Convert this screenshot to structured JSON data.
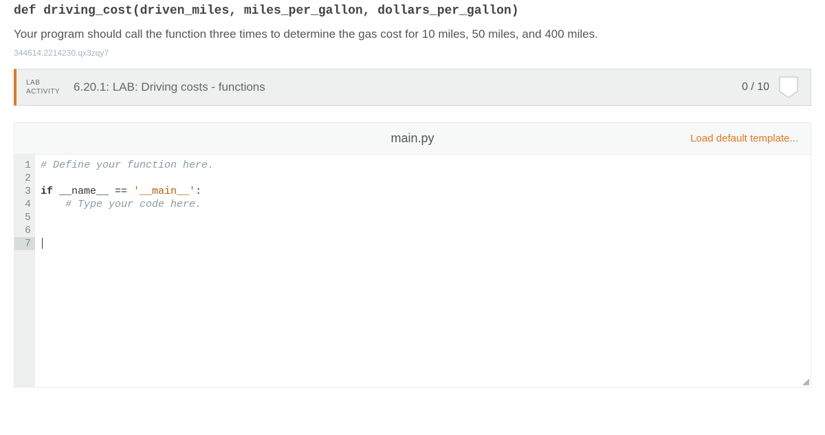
{
  "signature": "def driving_cost(driven_miles, miles_per_gallon, dollars_per_gallon)",
  "instruction": "Your program should call the function three times to determine the gas cost for 10 miles, 50 miles, and 400 miles.",
  "hash": "344614.2214230.qx3zqy7",
  "activity": {
    "label_line1": "LAB",
    "label_line2": "ACTIVITY",
    "title": "6.20.1: LAB: Driving costs - functions",
    "score": "0 / 10"
  },
  "file": {
    "name": "main.py",
    "load_template_label": "Load default template..."
  },
  "code": {
    "lines": [
      {
        "n": 1,
        "type": "comment",
        "text": "# Define your function here."
      },
      {
        "n": 2,
        "type": "blank",
        "text": ""
      },
      {
        "n": 3,
        "type": "ifmain",
        "kw": "if",
        "mid": " __name__ == ",
        "str": "'__main__'",
        "end": ":"
      },
      {
        "n": 4,
        "type": "comment_indent",
        "text": "    # Type your code here."
      },
      {
        "n": 5,
        "type": "blank",
        "text": ""
      },
      {
        "n": 6,
        "type": "blank",
        "text": ""
      },
      {
        "n": 7,
        "type": "cursor",
        "text": ""
      }
    ]
  },
  "colors": {
    "accent": "#e87722",
    "comment": "#8a9aa0",
    "gutter_bg": "#eef0f0",
    "header_bg": "#f7f8f8",
    "border": "#e8ebeb"
  }
}
